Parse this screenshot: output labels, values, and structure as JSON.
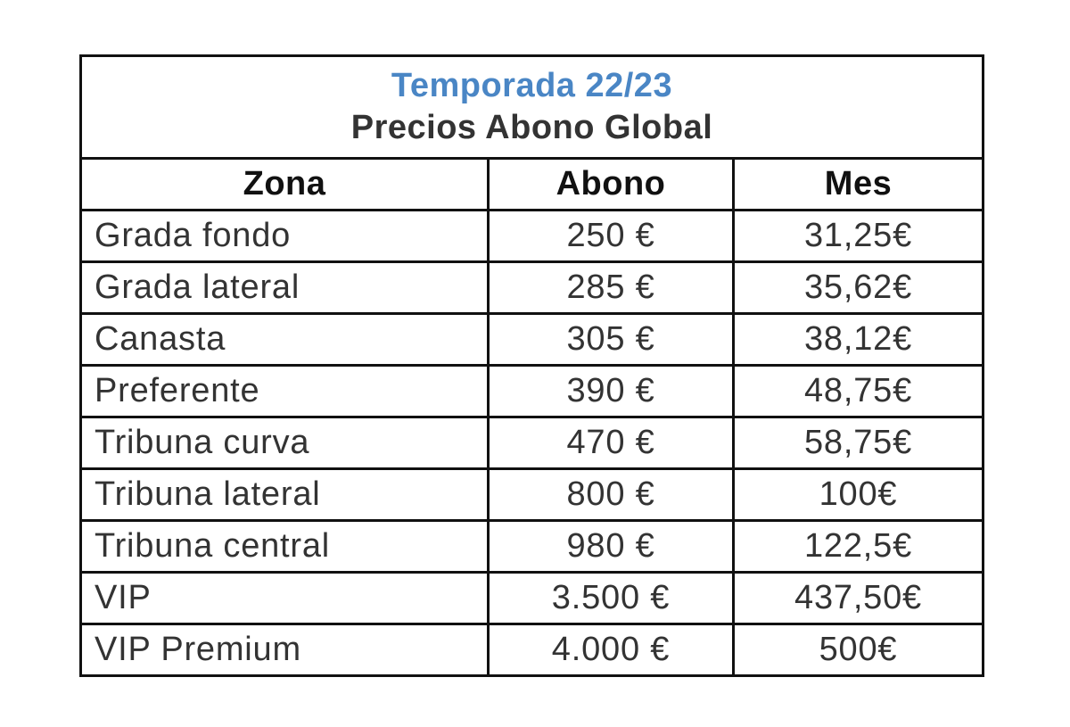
{
  "title": {
    "season": "Temporada 22/23",
    "subtitle": "Precios Abono Global",
    "season_color": "#4a86c5"
  },
  "headers": [
    "Zona",
    "Abono",
    "Mes"
  ],
  "rows": [
    {
      "zona": "Grada fondo",
      "abono": "250 €",
      "mes": "31,25€"
    },
    {
      "zona": "Grada lateral",
      "abono": "285 €",
      "mes": "35,62€"
    },
    {
      "zona": "Canasta",
      "abono": "305 €",
      "mes": "38,12€"
    },
    {
      "zona": "Preferente",
      "abono": "390 €",
      "mes": "48,75€"
    },
    {
      "zona": "Tribuna curva",
      "abono": "470 €",
      "mes": "58,75€"
    },
    {
      "zona": "Tribuna lateral",
      "abono": "800 €",
      "mes": "100€"
    },
    {
      "zona": "Tribuna central",
      "abono": "980 €",
      "mes": "122,5€"
    },
    {
      "zona": "VIP",
      "abono": "3.500 €",
      "mes": "437,50€"
    },
    {
      "zona": "VIP Premium",
      "abono": "4.000 €",
      "mes": "500€"
    }
  ]
}
